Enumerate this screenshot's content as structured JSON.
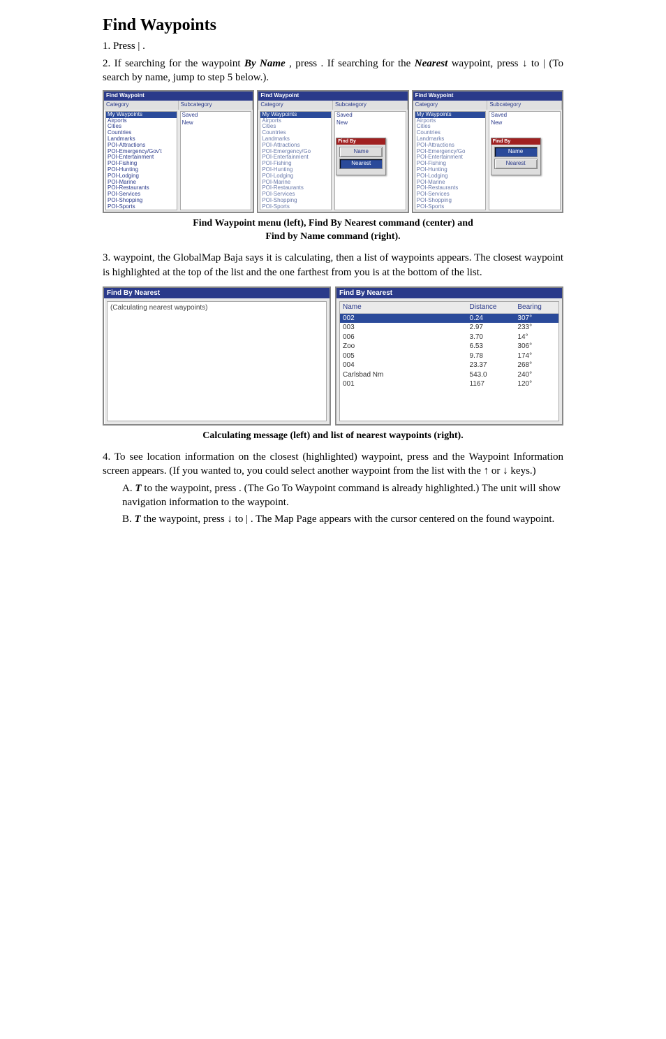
{
  "heading": "Find Waypoints",
  "step1": "1. Press        |     .",
  "step2_a": "2. If searching for the waypoint ",
  "step2_bold1": "By Name",
  "step2_b": ", press      . If searching for the ",
  "step2_bold2": "Nearest",
  "step2_c": " waypoint, press ↓ to              |         (To search by name, jump to step 5 below.).",
  "fw_title": "Find Waypoint",
  "fw_header_cat": "Category",
  "fw_header_sub": "Subcategory",
  "fw_categories": [
    "My Waypoints",
    "Airports",
    "Cities",
    "Countries",
    "Landmarks",
    "POI-Attractions",
    "POI-Emergency/Gov't",
    "POI-Entertainment",
    "POI-Fishing",
    "POI-Hunting",
    "POI-Lodging",
    "POI-Marine",
    "POI-Restaurants",
    "POI-Services",
    "POI-Shopping",
    "POI-Sports"
  ],
  "fw_categories_short": [
    "My Waypoints",
    "Airports",
    "Cities",
    "Countries",
    "Landmarks",
    "POI-Attractions",
    "POI-Emergency/Go",
    "POI-Entertainment",
    "POI-Fishing",
    "POI-Hunting",
    "POI-Lodging",
    "POI-Marine",
    "POI-Restaurants",
    "POI-Services",
    "POI-Shopping",
    "POI-Sports"
  ],
  "fw_subcats": [
    "Saved",
    "New"
  ],
  "popup_title": "Find By",
  "popup_btn_name": "Name",
  "popup_btn_nearest": "Nearest",
  "caption1_a": "Find Waypoint menu (left), Find By Nearest command (center) and",
  "caption1_b": "Find by Name command (right).",
  "step3": "3.                                                waypoint, the GlobalMap Baja says it is calculating, then a list of waypoints appears. The closest waypoint is highlighted at the top of the list and the one farthest from you is at the bottom of the list.",
  "fbn_title": "Find By Nearest",
  "calc_text": "(Calculating nearest waypoints)",
  "wpt_headers": {
    "name": "Name",
    "dist": "Distance",
    "bear": "Bearing"
  },
  "wpt_rows": [
    {
      "name": "002",
      "dist": "0.24",
      "bear": "307°",
      "sel": true
    },
    {
      "name": "003",
      "dist": "2.97",
      "bear": "233°"
    },
    {
      "name": "006",
      "dist": "3.70",
      "bear": "14°"
    },
    {
      "name": "Zoo",
      "dist": "6.53",
      "bear": "306°"
    },
    {
      "name": "005",
      "dist": "9.78",
      "bear": "174°"
    },
    {
      "name": "004",
      "dist": "23.37",
      "bear": "268°"
    },
    {
      "name": "Carlsbad Nm",
      "dist": "543.0",
      "bear": "240°"
    },
    {
      "name": "001",
      "dist": "1167",
      "bear": "120°"
    }
  ],
  "caption2": "Calculating message (left) and list of nearest waypoints (right).",
  "step4": "4. To see location information on the closest (highlighted) waypoint, press         and the Waypoint Information screen appears. (If you wanted to, you could select another waypoint from the list with the ↑ or ↓ keys.)",
  "stepA_a": "A. ",
  "stepA_bold": "T",
  "stepA_b": "                 to the waypoint, press       . (The Go To Waypoint command is already highlighted.) The unit will show navigation information to the waypoint.",
  "stepB_a": "B. ",
  "stepB_bold": "T",
  "stepB_b": "          the waypoint, press ↓ to                      |      . The Map Page appears with the cursor centered on the found waypoint.",
  "colors": {
    "title_bar": "#2a3a8a",
    "sel_bg": "#2a4a9a",
    "popup_title_bg": "#a02020",
    "panel_bg": "#e8e8e8",
    "cat_text": "#2a3a8a"
  }
}
